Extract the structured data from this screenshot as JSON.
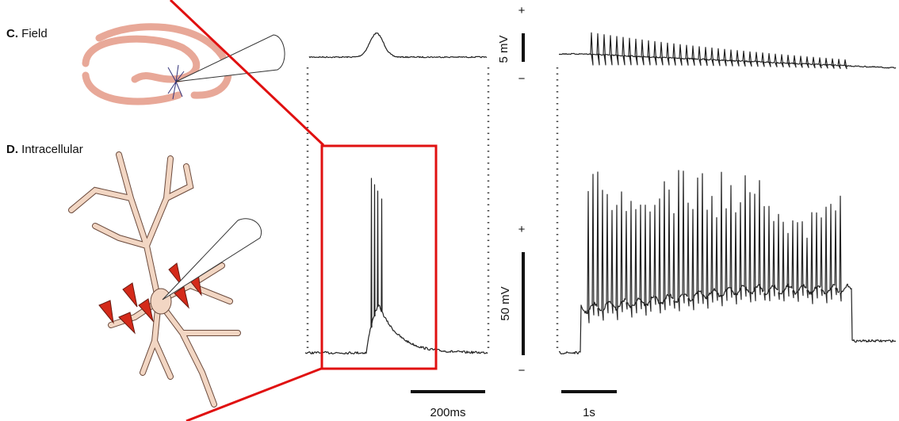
{
  "panels": [
    {
      "label": "C.",
      "title": "Field",
      "scale": "5 mV",
      "plus": "+",
      "minus": "−"
    },
    {
      "label": "D.",
      "title": "Intracellular",
      "scale": "50 mV",
      "plus": "+",
      "minus": "−"
    }
  ],
  "time_scales": [
    "200ms",
    "1s"
  ]
}
